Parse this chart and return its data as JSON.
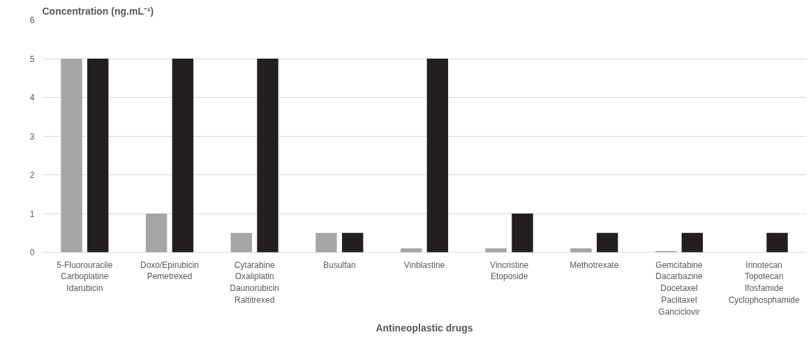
{
  "chart_data": {
    "type": "bar",
    "xlabel": "Antineoplastic drugs",
    "ylabel": "Concentration (ng.mL⁻¹)",
    "categories": [
      "5-Fluorouracile\nCarboplatine\nIdarubicin",
      "Doxo/Epirubicin\nPemetrexed",
      "Cytarabine\nOxaliplatin\nDaunorubicin\nRaltitrexed",
      "Busulfan",
      "Vinblastine",
      "Vincristine\nEtoposide",
      "Methotrexate",
      "Gemcitabine\nDacarbazine\nDocetaxel\nPaclitaxel\nGanciclovir",
      "Irinotecan\nTopotecan\nIfosfamide\nCyclophosphamide"
    ],
    "series": [
      {
        "color": "#a5a5a5",
        "values": [
          5,
          1,
          0.5,
          0.5,
          0.1,
          0.1,
          0.1,
          0.03,
          null
        ]
      },
      {
        "color": "#231f20",
        "values": [
          5,
          5,
          5,
          0.5,
          5,
          1,
          0.5,
          0.5,
          0.5
        ]
      }
    ],
    "ylim": [
      0,
      6
    ],
    "yticks": [
      0,
      1,
      2,
      3,
      4,
      5,
      6
    ],
    "grid": "y"
  }
}
